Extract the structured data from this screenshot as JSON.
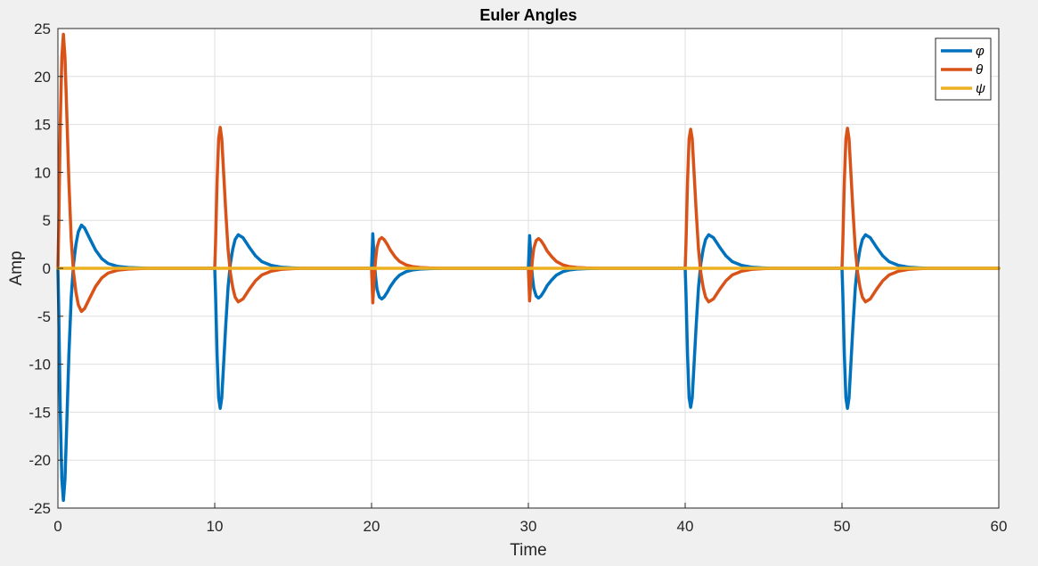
{
  "chart_data": {
    "type": "line",
    "title": "Euler Angles",
    "xlabel": "Time",
    "ylabel": "Amp",
    "xlim": [
      0,
      60
    ],
    "ylim": [
      -25,
      25
    ],
    "xticks": [
      0,
      10,
      20,
      30,
      40,
      50,
      60
    ],
    "yticks": [
      -25,
      -20,
      -15,
      -10,
      -5,
      0,
      5,
      10,
      15,
      20,
      25
    ],
    "grid": true,
    "legend_position": "top-right",
    "series": [
      {
        "name": "φ",
        "color": "#0072BD",
        "x": [
          0,
          0.05,
          0.15,
          0.25,
          0.35,
          0.45,
          0.55,
          0.7,
          0.85,
          1.0,
          1.15,
          1.3,
          1.5,
          1.7,
          2.0,
          2.4,
          2.8,
          3.2,
          3.8,
          4.5,
          5.2,
          5.8,
          10.0,
          10.05,
          10.15,
          10.25,
          10.35,
          10.45,
          10.55,
          10.7,
          10.85,
          11.0,
          11.15,
          11.3,
          11.5,
          11.8,
          12.2,
          12.6,
          13.0,
          13.6,
          14.3,
          15.0,
          15.6,
          20.0,
          20.08,
          20.15,
          20.25,
          20.35,
          20.5,
          20.65,
          20.8,
          21.0,
          21.2,
          21.5,
          21.8,
          22.2,
          22.6,
          23.1,
          23.7,
          24.3,
          24.9,
          30.0,
          30.08,
          30.15,
          30.25,
          30.35,
          30.5,
          30.65,
          30.8,
          31.0,
          31.2,
          31.5,
          31.8,
          32.2,
          32.6,
          33.1,
          33.7,
          34.3,
          34.9,
          40.0,
          40.05,
          40.15,
          40.25,
          40.35,
          40.45,
          40.55,
          40.7,
          40.85,
          41.0,
          41.15,
          41.3,
          41.5,
          41.8,
          42.2,
          42.6,
          43.0,
          43.6,
          44.3,
          45.0,
          45.6,
          50.0,
          50.05,
          50.15,
          50.25,
          50.35,
          50.45,
          50.55,
          50.7,
          50.85,
          51.0,
          51.15,
          51.3,
          51.5,
          51.8,
          52.2,
          52.6,
          53.0,
          53.6,
          54.3,
          55.0,
          55.6,
          60.0
        ],
        "values": [
          0,
          -4,
          -15,
          -22,
          -24.2,
          -22,
          -17,
          -9,
          -3,
          0.5,
          2.5,
          3.8,
          4.5,
          4.2,
          3.2,
          1.9,
          1.0,
          0.5,
          0.2,
          0.08,
          0.03,
          0,
          0,
          -2.5,
          -9,
          -13.5,
          -14.6,
          -13.5,
          -10.5,
          -6,
          -2,
          0.5,
          2.0,
          3.0,
          3.5,
          3.2,
          2.2,
          1.3,
          0.7,
          0.3,
          0.1,
          0.04,
          0,
          0,
          3.6,
          1.5,
          -0.8,
          -2.2,
          -3.0,
          -3.2,
          -3.0,
          -2.5,
          -1.9,
          -1.2,
          -0.7,
          -0.35,
          -0.18,
          -0.08,
          -0.03,
          -0.01,
          0,
          0,
          3.4,
          1.5,
          -0.8,
          -2.1,
          -2.9,
          -3.1,
          -2.9,
          -2.4,
          -1.8,
          -1.2,
          -0.7,
          -0.35,
          -0.18,
          -0.08,
          -0.03,
          -0.01,
          0,
          0,
          -2.5,
          -9,
          -13.5,
          -14.5,
          -13.5,
          -10.5,
          -6,
          -2,
          0.5,
          2.0,
          3.0,
          3.5,
          3.2,
          2.2,
          1.3,
          0.7,
          0.3,
          0.1,
          0.04,
          0,
          0,
          -2.5,
          -9,
          -13.5,
          -14.6,
          -13.5,
          -10.5,
          -6,
          -2,
          0.5,
          2.0,
          3.0,
          3.5,
          3.2,
          2.2,
          1.3,
          0.7,
          0.3,
          0.1,
          0.04,
          0,
          0
        ]
      },
      {
        "name": "θ",
        "color": "#D95319",
        "x": [
          0,
          0.05,
          0.15,
          0.25,
          0.35,
          0.45,
          0.55,
          0.7,
          0.85,
          1.0,
          1.15,
          1.3,
          1.5,
          1.7,
          2.0,
          2.4,
          2.8,
          3.2,
          3.8,
          4.5,
          5.2,
          5.8,
          10.0,
          10.05,
          10.15,
          10.25,
          10.35,
          10.45,
          10.55,
          10.7,
          10.85,
          11.0,
          11.15,
          11.3,
          11.5,
          11.8,
          12.2,
          12.6,
          13.0,
          13.6,
          14.3,
          15.0,
          15.6,
          20.0,
          20.08,
          20.15,
          20.25,
          20.35,
          20.5,
          20.65,
          20.8,
          21.0,
          21.2,
          21.5,
          21.8,
          22.2,
          22.6,
          23.1,
          23.7,
          24.3,
          24.9,
          30.0,
          30.08,
          30.15,
          30.25,
          30.35,
          30.5,
          30.65,
          30.8,
          31.0,
          31.2,
          31.5,
          31.8,
          32.2,
          32.6,
          33.1,
          33.7,
          34.3,
          34.9,
          40.0,
          40.05,
          40.15,
          40.25,
          40.35,
          40.45,
          40.55,
          40.7,
          40.85,
          41.0,
          41.15,
          41.3,
          41.5,
          41.8,
          42.2,
          42.6,
          43.0,
          43.6,
          44.3,
          45.0,
          45.6,
          50.0,
          50.05,
          50.15,
          50.25,
          50.35,
          50.45,
          50.55,
          50.7,
          50.85,
          51.0,
          51.15,
          51.3,
          51.5,
          51.8,
          52.2,
          52.6,
          53.0,
          53.6,
          54.3,
          55.0,
          55.6,
          60.0
        ],
        "values": [
          0,
          4,
          15,
          22,
          24.4,
          22,
          17,
          9,
          3,
          -0.5,
          -2.5,
          -3.8,
          -4.5,
          -4.2,
          -3.2,
          -1.9,
          -1.0,
          -0.5,
          -0.2,
          -0.08,
          -0.03,
          0,
          0,
          2.5,
          9,
          13.5,
          14.7,
          13.5,
          10.5,
          6,
          2,
          -0.5,
          -2.0,
          -3.0,
          -3.5,
          -3.2,
          -2.2,
          -1.3,
          -0.7,
          -0.3,
          -0.1,
          -0.04,
          0,
          0,
          -3.6,
          -1.5,
          0.8,
          2.2,
          3.0,
          3.2,
          3.0,
          2.5,
          1.9,
          1.2,
          0.7,
          0.35,
          0.18,
          0.08,
          0.03,
          0.01,
          0,
          0,
          -3.4,
          -1.5,
          0.8,
          2.1,
          2.9,
          3.1,
          2.9,
          2.4,
          1.8,
          1.2,
          0.7,
          0.35,
          0.18,
          0.08,
          0.03,
          0.01,
          0,
          0,
          2.5,
          9,
          13.5,
          14.5,
          13.5,
          10.5,
          6,
          2,
          -0.5,
          -2.0,
          -3.0,
          -3.5,
          -3.2,
          -2.2,
          -1.3,
          -0.7,
          -0.3,
          -0.1,
          -0.04,
          0,
          0,
          2.5,
          9,
          13.5,
          14.6,
          13.5,
          10.5,
          6,
          2,
          -0.5,
          -2.0,
          -3.0,
          -3.5,
          -3.2,
          -2.2,
          -1.3,
          -0.7,
          -0.3,
          -0.1,
          -0.04,
          0,
          0
        ]
      },
      {
        "name": "ψ",
        "color": "#EDB120",
        "x": [
          0,
          60
        ],
        "values": [
          0,
          0
        ]
      }
    ]
  }
}
